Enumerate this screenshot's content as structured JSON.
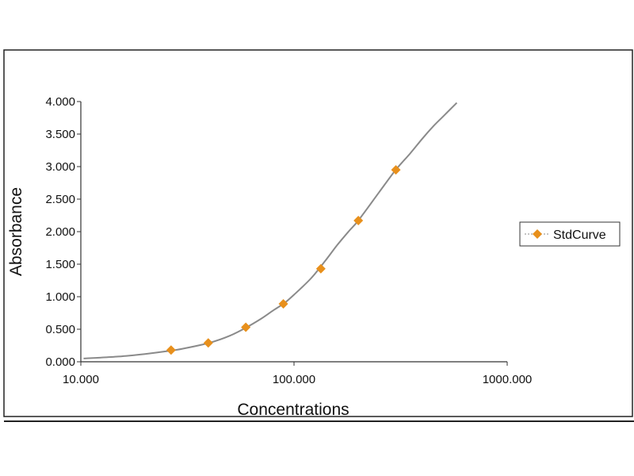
{
  "chart_data": {
    "type": "line",
    "xlabel": "Concentrations",
    "ylabel": "Absorbance",
    "x_scale": "log",
    "xlim": [
      10,
      1000
    ],
    "ylim": [
      0,
      4
    ],
    "x_ticks": [
      10,
      100,
      1000
    ],
    "x_tick_labels": [
      "10.000",
      "100.000",
      "1000.000"
    ],
    "y_ticks": [
      0,
      0.5,
      1,
      1.5,
      2,
      2.5,
      3,
      3.5,
      4
    ],
    "y_tick_labels": [
      "0.000",
      "0.500",
      "1.000",
      "1.500",
      "2.000",
      "2.500",
      "3.000",
      "3.500",
      "4.000"
    ],
    "grid": false,
    "legend_position": "right",
    "series": [
      {
        "name": "StdCurve",
        "color": "#e8901c",
        "marker": "diamond",
        "x": [
          26.5,
          39.6,
          59.4,
          89.1,
          133.6,
          200.3,
          300.5
        ],
        "y": [
          0.18,
          0.29,
          0.53,
          0.89,
          1.43,
          2.17,
          2.95
        ]
      }
    ],
    "fit_curve": {
      "color": "#8a8a8a",
      "x": [
        10.3,
        15,
        20,
        25,
        30,
        40,
        50,
        60,
        70,
        80,
        90,
        100,
        120,
        140,
        160,
        180,
        200,
        250,
        300,
        350,
        400,
        450,
        500,
        580
      ],
      "y": [
        0.05,
        0.08,
        0.12,
        0.16,
        0.2,
        0.29,
        0.4,
        0.53,
        0.66,
        0.79,
        0.9,
        1.03,
        1.28,
        1.55,
        1.8,
        2.0,
        2.17,
        2.6,
        2.95,
        3.2,
        3.43,
        3.62,
        3.77,
        3.98
      ]
    }
  }
}
